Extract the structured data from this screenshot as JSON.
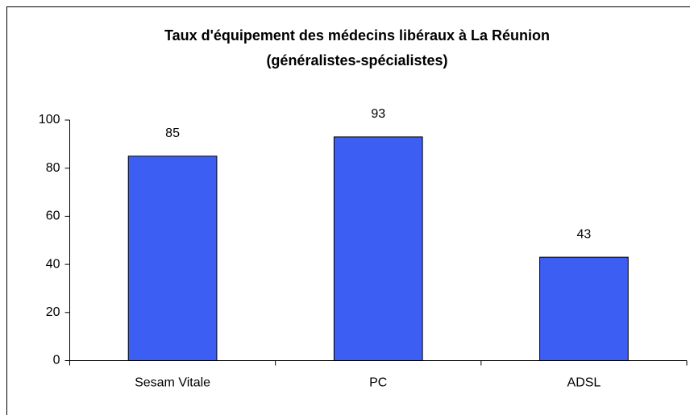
{
  "chart_data": {
    "type": "bar",
    "title": "Taux d'équipement des médecins libéraux à La Réunion",
    "subtitle": "(généralistes-spécialistes)",
    "categories": [
      "Sesam Vitale",
      "PC",
      "ADSL"
    ],
    "values": [
      85,
      93,
      43
    ],
    "color": "#3d5ef3",
    "ylim": [
      0,
      100
    ],
    "yticks": [
      0,
      20,
      40,
      60,
      80,
      100
    ],
    "grid": false
  }
}
